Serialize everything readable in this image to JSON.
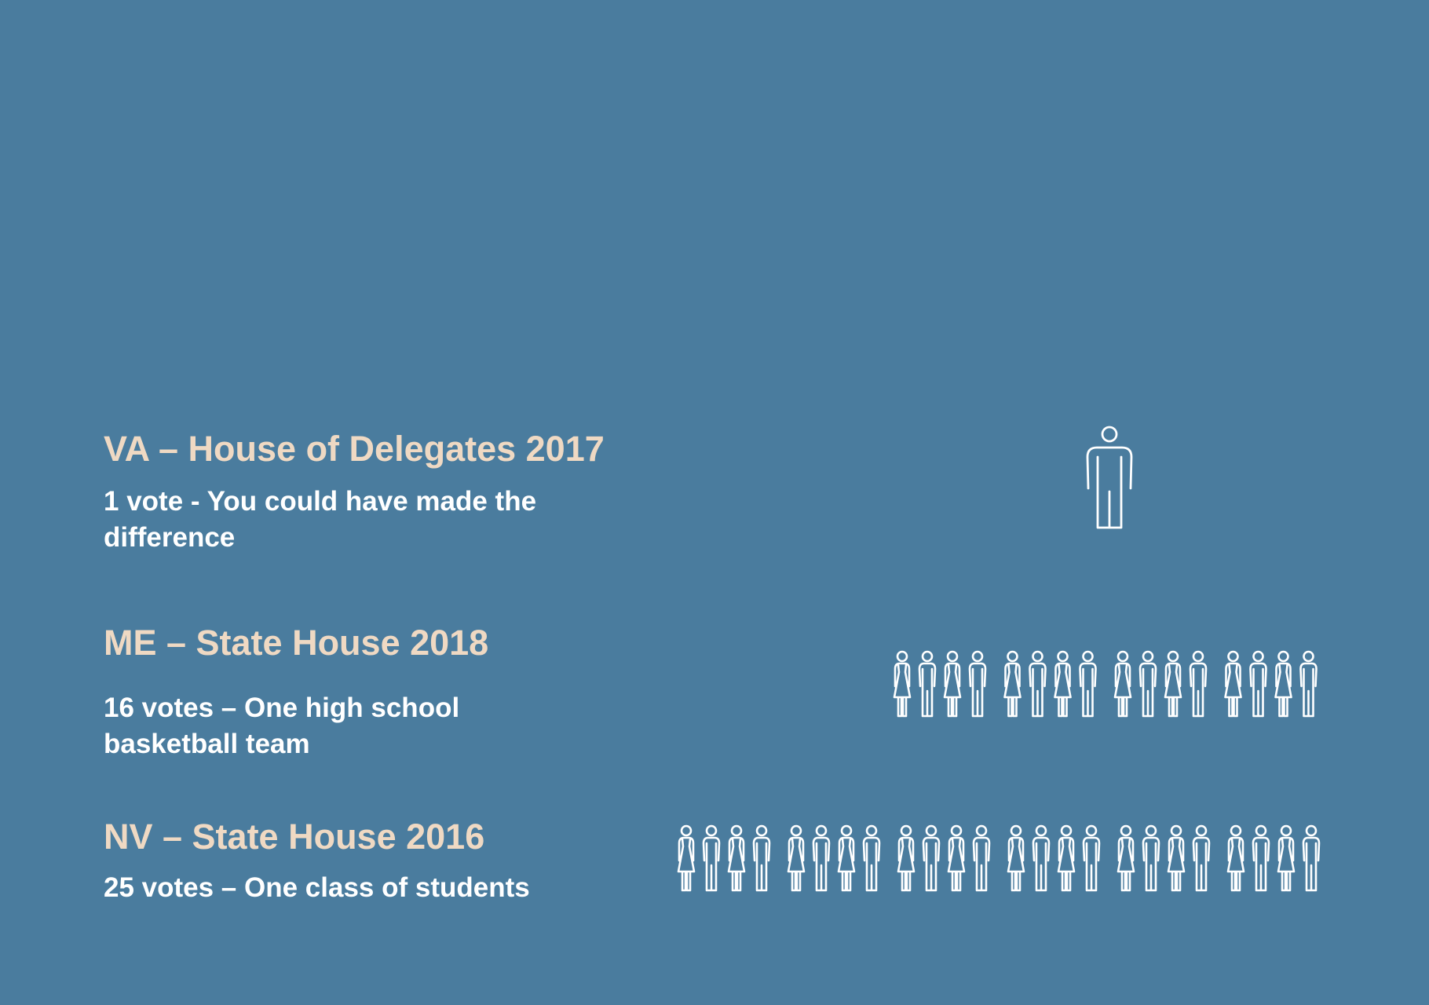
{
  "rows": [
    {
      "heading": "VA – House of Delegates 2017",
      "caption": "1 vote - You could have made the difference",
      "votes": 1
    },
    {
      "heading": "ME – State House 2018",
      "caption": "16 votes – One high school basketball team",
      "votes": 16
    },
    {
      "heading": "NV – State House 2016",
      "caption": "25 votes – One class of students",
      "votes": 25
    }
  ],
  "colors": {
    "background": "#4a7c9e",
    "heading": "#efd9c3",
    "caption": "#ffffff",
    "icon_stroke": "#ffffff"
  },
  "icons": [
    "person-icon",
    "man-icon",
    "woman-icon"
  ]
}
